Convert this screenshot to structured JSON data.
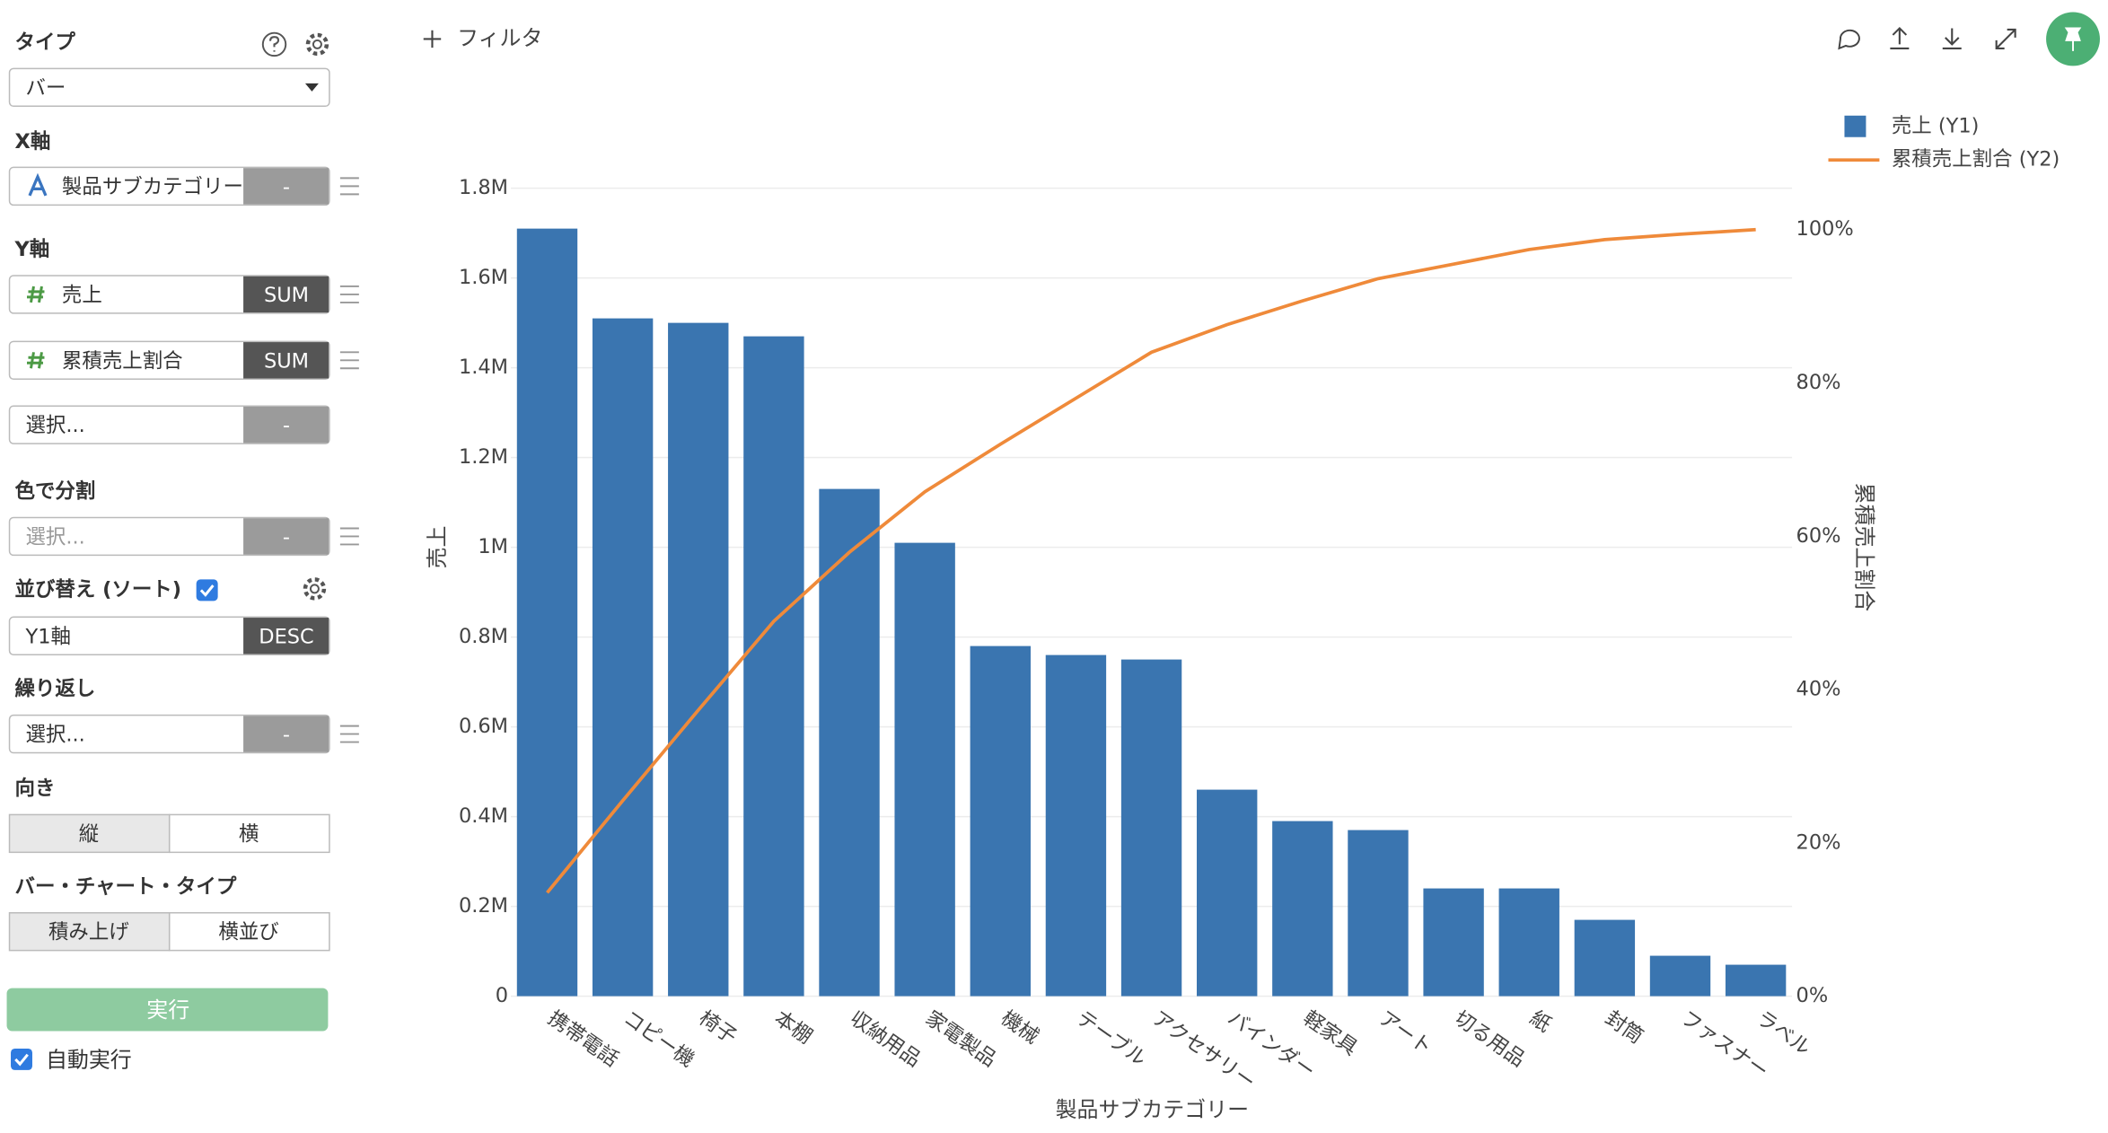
{
  "toolbar": {
    "filter": "フィルタ"
  },
  "sidebar": {
    "type": {
      "label": "タイプ",
      "value": "バー"
    },
    "x_axis": {
      "label": "X軸",
      "field": "製品サブカテゴリー",
      "button": "-"
    },
    "y_axis": {
      "label": "Y軸",
      "fields": [
        {
          "name": "売上",
          "button": "SUM"
        },
        {
          "name": "累積売上割合",
          "button": "SUM"
        },
        {
          "name": "選択...",
          "button": "-"
        }
      ]
    },
    "color_split": {
      "label": "色で分割",
      "field": "選択...",
      "button": "-"
    },
    "sort": {
      "label": "並び替え (ソート)",
      "field": "Y1軸",
      "button": "DESC"
    },
    "repeat": {
      "label": "繰り返し",
      "field": "選択...",
      "button": "-"
    },
    "orientation": {
      "label": "向き",
      "options": [
        "縦",
        "横"
      ]
    },
    "bar_type": {
      "label": "バー・チャート・タイプ",
      "options": [
        "積み上げ",
        "横並び"
      ]
    },
    "run_button": "実行",
    "auto_run": "自動実行"
  },
  "chart_data": {
    "type": "bar_line",
    "xlabel": "製品サブカテゴリー",
    "ylabel": "売上",
    "y2label": "累積売上割合",
    "categories": [
      "携帯電話",
      "コピー機",
      "椅子",
      "本棚",
      "収納用品",
      "家電製品",
      "機械",
      "テーブル",
      "アクセサリー",
      "バインダー",
      "軽家具",
      "アート",
      "切る用品",
      "紙",
      "封筒",
      "ファスナー",
      "ラベル"
    ],
    "series": [
      {
        "name": "売上 (Y1)",
        "type": "bar",
        "color": "#3a75b0",
        "values": [
          1710000,
          1510000,
          1500000,
          1470000,
          1130000,
          1010000,
          780000,
          760000,
          750000,
          460000,
          390000,
          370000,
          240000,
          240000,
          170000,
          90000,
          70000
        ]
      },
      {
        "name": "累積売上割合 (Y2)",
        "type": "line",
        "axis": "y2",
        "color": "#ef8a3a",
        "values": [
          13.5,
          25.5,
          37.3,
          48.9,
          57.9,
          65.8,
          72.0,
          78.0,
          84.0,
          87.6,
          90.7,
          93.6,
          95.5,
          97.4,
          98.7,
          99.4,
          100
        ]
      }
    ],
    "ylim": [
      0,
      1800000
    ],
    "yticks": [
      0,
      {
        "value": 200000,
        "label": "0.2M"
      },
      {
        "value": 400000,
        "label": "0.4M"
      },
      {
        "value": 600000,
        "label": "0.6M"
      },
      {
        "value": 800000,
        "label": "0.8M"
      },
      {
        "value": 1000000,
        "label": "1M"
      },
      {
        "value": 1200000,
        "label": "1.2M"
      },
      {
        "value": 1400000,
        "label": "1.4M"
      },
      {
        "value": 1600000,
        "label": "1.6M"
      },
      {
        "value": 1800000,
        "label": "1.8M"
      }
    ],
    "y2lim": [
      0,
      105.4
    ],
    "y2ticks": [
      {
        "value": 0,
        "label": "0%"
      },
      {
        "value": 20,
        "label": "20%"
      },
      {
        "value": 40,
        "label": "40%"
      },
      {
        "value": 60,
        "label": "60%"
      },
      {
        "value": 80,
        "label": "80%"
      },
      {
        "value": 100,
        "label": "100%"
      }
    ],
    "grid": true,
    "legend": "top-right"
  }
}
